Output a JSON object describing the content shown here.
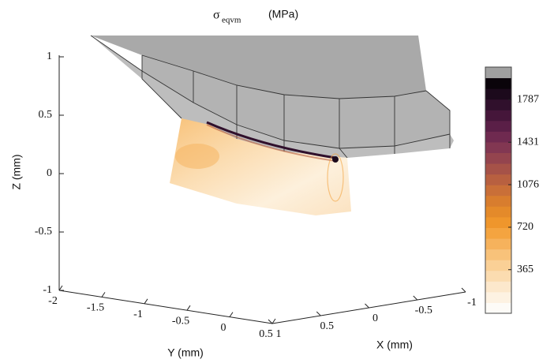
{
  "chart_data": {
    "type": "surface3d",
    "title_symbol": "σ",
    "title_subscript": "eqvm",
    "title_unit": "(MPa)",
    "xlabel": "X (mm)",
    "ylabel": "Y (mm)",
    "zlabel": "Z (mm)",
    "xlim": [
      -1,
      1
    ],
    "xticks": [
      1,
      0.5,
      0,
      -0.5,
      -1
    ],
    "ylim": [
      -2,
      0.5
    ],
    "yticks": [
      -2,
      -1.5,
      -1,
      -0.5,
      0,
      0.5
    ],
    "zlim": [
      -1,
      1
    ],
    "zticks": [
      1,
      0.5,
      0,
      -0.5,
      -1
    ],
    "colorbar": {
      "clim": [
        0,
        2060
      ],
      "ticks": [
        365,
        720,
        1076,
        1431,
        1787
      ],
      "colors": [
        "#fdfbf7",
        "#fdf2e2",
        "#fce8cc",
        "#fbdcb0",
        "#fad096",
        "#f8c27a",
        "#f6b25c",
        "#f4a440",
        "#ef962c",
        "#e48a2a",
        "#d87d2e",
        "#c96f38",
        "#b86040",
        "#a65248",
        "#94444e",
        "#823752",
        "#6f2a50",
        "#5a1f47",
        "#45163a",
        "#30102c",
        "#1c0a1c",
        "#0a040a",
        "#a0a0a0"
      ]
    }
  }
}
